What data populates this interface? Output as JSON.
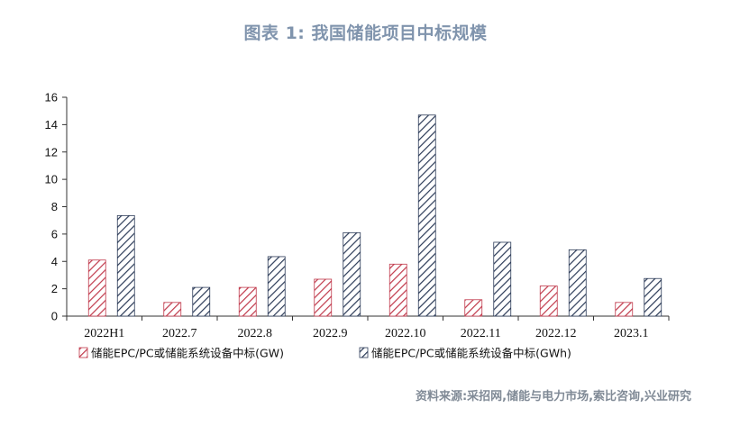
{
  "title": "图表 1:  我国储能项目中标规模",
  "source": "资料来源:采招网,储能与电力市场,索比咨询,兴业研究",
  "colors": {
    "series_gw": "#c0384a",
    "series_gwh": "#2b3a57",
    "title": "#8094ad",
    "source": "#808a96"
  },
  "chart_data": {
    "type": "bar",
    "categories": [
      "2022H1",
      "2022.7",
      "2022.8",
      "2022.9",
      "2022.10",
      "2022.11",
      "2022.12",
      "2023.1"
    ],
    "series": [
      {
        "name": "储能EPC/PC或储能系统设备中标(GW)",
        "values": [
          4.1,
          1.0,
          2.1,
          2.7,
          3.8,
          1.2,
          2.2,
          1.0
        ]
      },
      {
        "name": "储能EPC/PC或储能系统设备中标(GWh)",
        "values": [
          7.35,
          2.1,
          4.35,
          6.1,
          14.7,
          5.4,
          4.85,
          2.75
        ]
      }
    ],
    "ylim": [
      0,
      16
    ],
    "yticks": [
      0,
      2,
      4,
      6,
      8,
      10,
      12,
      14,
      16
    ],
    "grid": false,
    "legend": "bottom",
    "xlabel": "",
    "ylabel": ""
  }
}
